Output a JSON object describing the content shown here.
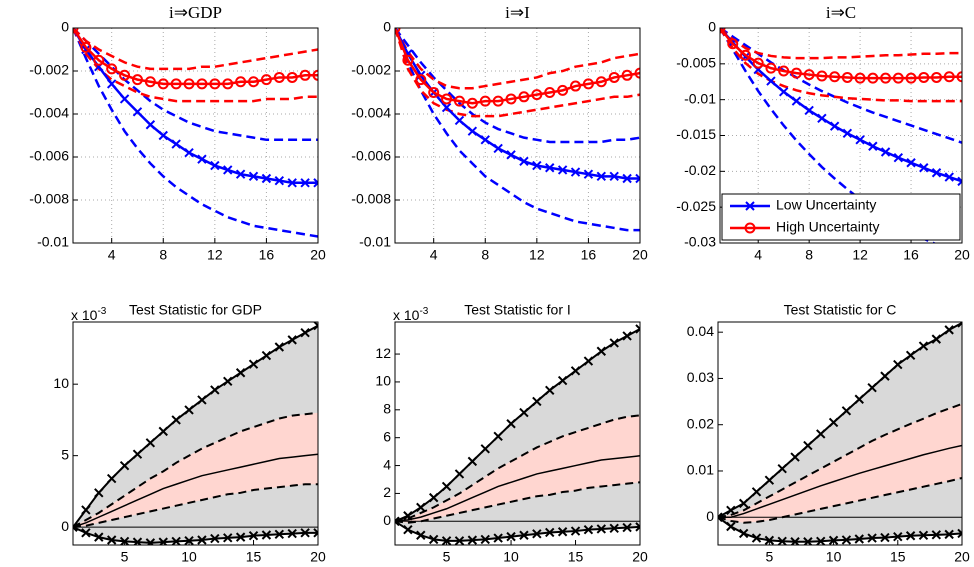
{
  "chart_data": [
    {
      "type": "line",
      "title": "i⇒GDP",
      "x": [
        1,
        2,
        3,
        4,
        5,
        6,
        7,
        8,
        9,
        10,
        11,
        12,
        13,
        14,
        15,
        16,
        17,
        18,
        19,
        20
      ],
      "xlim": [
        1,
        20
      ],
      "xticks": [
        4,
        8,
        12,
        16,
        20
      ],
      "ylim": [
        -0.01,
        0
      ],
      "yticks": [
        -0.01,
        -0.008,
        -0.006,
        -0.004,
        -0.002,
        0
      ],
      "grid": true,
      "series": [
        {
          "color": "#0000ff",
          "marker": "x",
          "values": [
            0,
            -0.001,
            -0.0018,
            -0.0026,
            -0.0033,
            -0.0039,
            -0.0045,
            -0.005,
            -0.0054,
            -0.0058,
            -0.0061,
            -0.0064,
            -0.0066,
            -0.0068,
            -0.0069,
            -0.007,
            -0.0071,
            -0.0072,
            -0.0072,
            -0.0072
          ],
          "lower": [
            0,
            -0.0014,
            -0.0027,
            -0.0038,
            -0.0048,
            -0.0056,
            -0.0063,
            -0.0069,
            -0.0074,
            -0.0078,
            -0.0082,
            -0.0085,
            -0.0088,
            -0.009,
            -0.0092,
            -0.0093,
            -0.0094,
            -0.0095,
            -0.0096,
            -0.0097
          ],
          "upper": [
            0,
            -0.0006,
            -0.0012,
            -0.0018,
            -0.0024,
            -0.0029,
            -0.0034,
            -0.0038,
            -0.0041,
            -0.0044,
            -0.0046,
            -0.0048,
            -0.0049,
            -0.005,
            -0.0051,
            -0.0052,
            -0.0052,
            -0.0052,
            -0.0052,
            -0.0052
          ]
        },
        {
          "color": "#ff0000",
          "marker": "o",
          "values": [
            0,
            -0.0009,
            -0.0015,
            -0.0019,
            -0.0022,
            -0.0024,
            -0.0025,
            -0.0026,
            -0.0026,
            -0.0026,
            -0.0026,
            -0.0026,
            -0.0026,
            -0.0025,
            -0.0025,
            -0.0024,
            -0.0023,
            -0.0023,
            -0.0022,
            -0.0022
          ],
          "lower": [
            0,
            -0.0012,
            -0.0019,
            -0.0024,
            -0.0027,
            -0.003,
            -0.0032,
            -0.0033,
            -0.0034,
            -0.0034,
            -0.0034,
            -0.0034,
            -0.0034,
            -0.0034,
            -0.0034,
            -0.0033,
            -0.0033,
            -0.0033,
            -0.0032,
            -0.0032
          ],
          "upper": [
            0,
            -0.0006,
            -0.001,
            -0.0013,
            -0.0016,
            -0.0018,
            -0.0019,
            -0.0019,
            -0.0019,
            -0.0019,
            -0.0018,
            -0.0018,
            -0.0017,
            -0.0016,
            -0.0015,
            -0.0014,
            -0.0013,
            -0.0012,
            -0.0011,
            -0.001
          ]
        }
      ]
    },
    {
      "type": "line",
      "title": "i⇒I",
      "x": [
        1,
        2,
        3,
        4,
        5,
        6,
        7,
        8,
        9,
        10,
        11,
        12,
        13,
        14,
        15,
        16,
        17,
        18,
        19,
        20
      ],
      "xlim": [
        1,
        20
      ],
      "xticks": [
        4,
        8,
        12,
        16,
        20
      ],
      "ylim": [
        -0.01,
        0
      ],
      "yticks": [
        -0.01,
        -0.008,
        -0.006,
        -0.004,
        -0.002,
        0
      ],
      "grid": true,
      "series": [
        {
          "color": "#0000ff",
          "marker": "x",
          "values": [
            0,
            -0.0012,
            -0.0022,
            -0.003,
            -0.0037,
            -0.0043,
            -0.0048,
            -0.0052,
            -0.0056,
            -0.0059,
            -0.0062,
            -0.0064,
            -0.0065,
            -0.0066,
            -0.0067,
            -0.0068,
            -0.0069,
            -0.0069,
            -0.007,
            -0.007
          ],
          "lower": [
            0,
            -0.0016,
            -0.0029,
            -0.004,
            -0.0049,
            -0.0057,
            -0.0063,
            -0.0069,
            -0.0073,
            -0.0077,
            -0.0081,
            -0.0084,
            -0.0086,
            -0.0088,
            -0.009,
            -0.0091,
            -0.0092,
            -0.0093,
            -0.0094,
            -0.0094
          ],
          "upper": [
            0,
            -0.0008,
            -0.0016,
            -0.0023,
            -0.0029,
            -0.0035,
            -0.004,
            -0.0044,
            -0.0047,
            -0.0049,
            -0.0051,
            -0.0052,
            -0.0053,
            -0.0053,
            -0.0053,
            -0.0053,
            -0.0053,
            -0.0052,
            -0.0052,
            -0.0051
          ]
        },
        {
          "color": "#ff0000",
          "marker": "o",
          "values": [
            0,
            -0.0015,
            -0.0024,
            -0.003,
            -0.0033,
            -0.0034,
            -0.0035,
            -0.0034,
            -0.0034,
            -0.0033,
            -0.0032,
            -0.0031,
            -0.003,
            -0.0029,
            -0.0027,
            -0.0026,
            -0.0025,
            -0.0023,
            -0.0022,
            -0.0021
          ],
          "lower": [
            0,
            -0.0019,
            -0.0029,
            -0.0035,
            -0.0038,
            -0.004,
            -0.0041,
            -0.0041,
            -0.0041,
            -0.004,
            -0.0039,
            -0.0038,
            -0.0037,
            -0.0036,
            -0.0035,
            -0.0034,
            -0.0033,
            -0.0032,
            -0.0032,
            -0.0031
          ],
          "upper": [
            0,
            -0.0011,
            -0.0019,
            -0.0024,
            -0.0027,
            -0.0028,
            -0.0028,
            -0.0027,
            -0.0026,
            -0.0025,
            -0.0024,
            -0.0023,
            -0.0021,
            -0.002,
            -0.0018,
            -0.0017,
            -0.0016,
            -0.0014,
            -0.0013,
            -0.0012
          ]
        }
      ]
    },
    {
      "type": "line",
      "title": "i⇒C",
      "x": [
        1,
        2,
        3,
        4,
        5,
        6,
        7,
        8,
        9,
        10,
        11,
        12,
        13,
        14,
        15,
        16,
        17,
        18,
        19,
        20
      ],
      "xlim": [
        1,
        20
      ],
      "xticks": [
        4,
        8,
        12,
        16,
        20
      ],
      "ylim": [
        -0.03,
        0
      ],
      "yticks": [
        -0.03,
        -0.025,
        -0.02,
        -0.015,
        -0.01,
        -0.005,
        0
      ],
      "grid": true,
      "legend": "lower right",
      "series": [
        {
          "name": "Low Uncertainty",
          "color": "#0000ff",
          "marker": "x",
          "values": [
            0,
            -0.002,
            -0.004,
            -0.0058,
            -0.0074,
            -0.0089,
            -0.0102,
            -0.0115,
            -0.0126,
            -0.0137,
            -0.0147,
            -0.0156,
            -0.0165,
            -0.0173,
            -0.0181,
            -0.0188,
            -0.0195,
            -0.0202,
            -0.0208,
            -0.0214
          ],
          "lower": [
            0,
            -0.003,
            -0.006,
            -0.0088,
            -0.0113,
            -0.0136,
            -0.0157,
            -0.0176,
            -0.0194,
            -0.021,
            -0.0225,
            -0.0239,
            -0.0252,
            -0.0264,
            -0.0275,
            -0.0285,
            -0.0294,
            -0.0302,
            -0.031,
            -0.0317
          ],
          "upper": [
            0,
            -0.0012,
            -0.0024,
            -0.0036,
            -0.0048,
            -0.0059,
            -0.0069,
            -0.0079,
            -0.0088,
            -0.0096,
            -0.0104,
            -0.0111,
            -0.0118,
            -0.0124,
            -0.013,
            -0.0136,
            -0.0142,
            -0.0148,
            -0.0154,
            -0.016
          ]
        },
        {
          "name": "High Uncertainty",
          "color": "#ff0000",
          "marker": "o",
          "values": [
            0,
            -0.0022,
            -0.0038,
            -0.0049,
            -0.0056,
            -0.006,
            -0.0063,
            -0.0065,
            -0.0067,
            -0.0068,
            -0.0069,
            -0.007,
            -0.007,
            -0.007,
            -0.007,
            -0.007,
            -0.0069,
            -0.0069,
            -0.0068,
            -0.0068
          ],
          "lower": [
            0,
            -0.0028,
            -0.0049,
            -0.0064,
            -0.0074,
            -0.0081,
            -0.0087,
            -0.0091,
            -0.0094,
            -0.0096,
            -0.0098,
            -0.0099,
            -0.01,
            -0.0101,
            -0.0101,
            -0.0102,
            -0.0102,
            -0.0102,
            -0.0102,
            -0.0102
          ],
          "upper": [
            0,
            -0.0016,
            -0.0028,
            -0.0035,
            -0.0039,
            -0.0041,
            -0.0042,
            -0.0042,
            -0.0042,
            -0.0041,
            -0.0041,
            -0.004,
            -0.0039,
            -0.0038,
            -0.0038,
            -0.0037,
            -0.0036,
            -0.0036,
            -0.0035,
            -0.0035
          ]
        }
      ]
    },
    {
      "type": "band_line",
      "title": "Test Statistic for GDP",
      "scale_label": "x 10",
      "scale_exponent": "-3",
      "x": [
        1,
        2,
        3,
        4,
        5,
        6,
        7,
        8,
        9,
        10,
        11,
        12,
        13,
        14,
        15,
        16,
        17,
        18,
        19,
        20
      ],
      "xlim": [
        1,
        20
      ],
      "xticks": [
        5,
        10,
        15,
        20
      ],
      "ylim": [
        -1.25,
        14.35
      ],
      "yticks": [
        0,
        5,
        10
      ],
      "reference_line": 0,
      "color": "#000000",
      "values": [
        0,
        0.3,
        0.7,
        1.1,
        1.5,
        1.9,
        2.3,
        2.7,
        3.0,
        3.3,
        3.6,
        3.8,
        4.0,
        4.2,
        4.4,
        4.6,
        4.8,
        4.9,
        5.0,
        5.1
      ],
      "bands": [
        {
          "fill": "#d9d9d9",
          "line": "solid",
          "marker": "x",
          "upper": [
            0,
            1.2,
            2.4,
            3.4,
            4.3,
            5.1,
            5.9,
            6.7,
            7.5,
            8.2,
            8.9,
            9.6,
            10.2,
            10.8,
            11.4,
            12,
            12.6,
            13.1,
            13.6,
            14.1
          ],
          "lower": [
            0,
            -0.4,
            -0.7,
            -0.9,
            -1.0,
            -1.05,
            -1.1,
            -1.05,
            -1.0,
            -0.95,
            -0.9,
            -0.8,
            -0.75,
            -0.7,
            -0.6,
            -0.55,
            -0.5,
            -0.45,
            -0.4,
            -0.4
          ]
        },
        {
          "fill": "#ffd6d0",
          "line": "dashed",
          "upper": [
            0,
            0.5,
            1.0,
            1.6,
            2.2,
            2.8,
            3.4,
            3.9,
            4.5,
            5.0,
            5.5,
            5.9,
            6.3,
            6.7,
            7.0,
            7.3,
            7.6,
            7.8,
            7.9,
            8.0
          ],
          "lower": [
            0,
            0.1,
            0.3,
            0.5,
            0.7,
            0.9,
            1.1,
            1.3,
            1.5,
            1.7,
            1.9,
            2.1,
            2.3,
            2.4,
            2.6,
            2.7,
            2.8,
            2.9,
            3.0,
            3.0
          ]
        }
      ]
    },
    {
      "type": "band_line",
      "title": "Test Statistic for I",
      "scale_label": "x 10",
      "scale_exponent": "-3",
      "x": [
        1,
        2,
        3,
        4,
        5,
        6,
        7,
        8,
        9,
        10,
        11,
        12,
        13,
        14,
        15,
        16,
        17,
        18,
        19,
        20
      ],
      "xlim": [
        1,
        20
      ],
      "xticks": [
        5,
        10,
        15,
        20
      ],
      "ylim": [
        -1.7,
        14.3
      ],
      "yticks": [
        0,
        2,
        4,
        6,
        8,
        10,
        12
      ],
      "reference_line": 0,
      "color": "#000000",
      "values": [
        0,
        0.1,
        0.3,
        0.6,
        0.9,
        1.3,
        1.7,
        2.1,
        2.5,
        2.8,
        3.1,
        3.4,
        3.6,
        3.8,
        4.0,
        4.2,
        4.4,
        4.5,
        4.6,
        4.7
      ],
      "bands": [
        {
          "fill": "#d9d9d9",
          "line": "solid",
          "marker": "x",
          "upper": [
            0,
            0.4,
            1.0,
            1.7,
            2.5,
            3.4,
            4.3,
            5.2,
            6.1,
            7.0,
            7.8,
            8.6,
            9.4,
            10.1,
            10.8,
            11.5,
            12.2,
            12.8,
            13.3,
            13.8
          ],
          "lower": [
            0,
            -0.6,
            -1.0,
            -1.3,
            -1.4,
            -1.4,
            -1.35,
            -1.3,
            -1.2,
            -1.1,
            -1.0,
            -0.9,
            -0.8,
            -0.75,
            -0.7,
            -0.6,
            -0.55,
            -0.5,
            -0.45,
            -0.4
          ]
        },
        {
          "fill": "#ffd6d0",
          "line": "dashed",
          "upper": [
            0,
            0.2,
            0.6,
            1.0,
            1.5,
            2.0,
            2.6,
            3.2,
            3.8,
            4.3,
            4.8,
            5.3,
            5.7,
            6.1,
            6.4,
            6.7,
            7.0,
            7.3,
            7.5,
            7.6
          ],
          "lower": [
            0,
            -0.1,
            0,
            0.2,
            0.4,
            0.6,
            0.8,
            1.0,
            1.2,
            1.4,
            1.6,
            1.8,
            1.9,
            2.1,
            2.2,
            2.4,
            2.5,
            2.6,
            2.7,
            2.8
          ]
        }
      ]
    },
    {
      "type": "band_line",
      "title": "Test Statistic for C",
      "x": [
        1,
        2,
        3,
        4,
        5,
        6,
        7,
        8,
        9,
        10,
        11,
        12,
        13,
        14,
        15,
        16,
        17,
        18,
        19,
        20
      ],
      "xlim": [
        1,
        20
      ],
      "xticks": [
        5,
        10,
        15,
        20
      ],
      "ylim": [
        -0.006,
        0.0422
      ],
      "yticks": [
        0,
        0.01,
        0.02,
        0.03,
        0.04
      ],
      "reference_line": 0,
      "color": "#000000",
      "values": [
        0,
        0,
        0.0008,
        0.0018,
        0.0028,
        0.0038,
        0.0048,
        0.0058,
        0.0068,
        0.0077,
        0.0086,
        0.0095,
        0.0103,
        0.0111,
        0.0119,
        0.0127,
        0.0135,
        0.0142,
        0.0149,
        0.0155
      ],
      "bands": [
        {
          "fill": "#d9d9d9",
          "line": "solid",
          "marker": "x",
          "upper": [
            0,
            0.0015,
            0.003,
            0.0055,
            0.008,
            0.0105,
            0.013,
            0.0155,
            0.018,
            0.0205,
            0.023,
            0.0255,
            0.028,
            0.0305,
            0.033,
            0.035,
            0.037,
            0.0385,
            0.0405,
            0.042
          ],
          "lower": [
            0,
            -0.002,
            -0.0035,
            -0.0045,
            -0.005,
            -0.0052,
            -0.0053,
            -0.0053,
            -0.0052,
            -0.005,
            -0.0049,
            -0.0047,
            -0.0045,
            -0.0044,
            -0.0042,
            -0.004,
            -0.0039,
            -0.0038,
            -0.0037,
            -0.0035
          ]
        },
        {
          "fill": "#ffd6d0",
          "line": "dashed",
          "upper": [
            0,
            0.0005,
            0.0015,
            0.003,
            0.0045,
            0.006,
            0.0075,
            0.009,
            0.0105,
            0.012,
            0.0135,
            0.015,
            0.0165,
            0.0178,
            0.019,
            0.0202,
            0.0213,
            0.0225,
            0.0235,
            0.0245
          ],
          "lower": [
            0,
            -0.0008,
            -0.0012,
            -0.001,
            -0.0006,
            0,
            0.0006,
            0.0012,
            0.0018,
            0.0024,
            0.003,
            0.0036,
            0.0042,
            0.0048,
            0.0054,
            0.006,
            0.0066,
            0.0072,
            0.0078,
            0.0085
          ]
        }
      ]
    }
  ]
}
